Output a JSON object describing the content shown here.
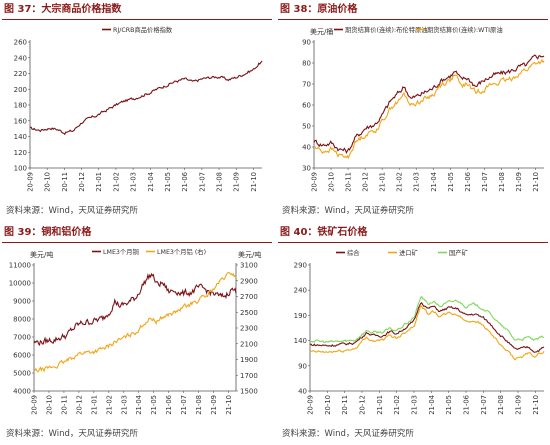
{
  "colors": {
    "title": "#8b1a1a",
    "darkred": "#7a1116",
    "orange": "#f2a516",
    "green": "#7ed957"
  },
  "panels": [
    {
      "title": "图 37：大宗商品价格指数",
      "source": "资料来源：Wind，天风证券研究所"
    },
    {
      "title": "图 38：原油价格",
      "source": "资料来源：Wind，天风证券研究所"
    },
    {
      "title": "图 39：铜和铝价格",
      "source": "资料来源：Wind，天风证券研究所"
    },
    {
      "title": "图 40：铁矿石价格",
      "source": "资料来源：Wind，天风证券研究所"
    }
  ],
  "chart_data": [
    {
      "type": "line",
      "x_ticks": [
        "20-09",
        "20-10",
        "20-11",
        "20-12",
        "21-01",
        "21-02",
        "21-03",
        "21-04",
        "21-05",
        "21-06",
        "21-07",
        "21-08",
        "21-09",
        "21-10"
      ],
      "ylim": [
        100,
        260
      ],
      "y_ticks": [
        100,
        120,
        140,
        160,
        180,
        200,
        220,
        240,
        260
      ],
      "ylabel": "",
      "series": [
        {
          "name": "RJ/CRB商品价格指数",
          "color": "#7a1116",
          "anchors": [
            [
              0,
              150
            ],
            [
              0.6,
              148
            ],
            [
              1.2,
              151
            ],
            [
              1.6,
              149
            ],
            [
              2.0,
              145
            ],
            [
              2.5,
              147
            ],
            [
              3.0,
              158
            ],
            [
              3.5,
              163
            ],
            [
              4.0,
              168
            ],
            [
              4.5,
              174
            ],
            [
              5.0,
              180
            ],
            [
              5.5,
              185
            ],
            [
              6.0,
              188
            ],
            [
              6.5,
              192
            ],
            [
              7.0,
              196
            ],
            [
              7.5,
              201
            ],
            [
              8.0,
              206
            ],
            [
              8.5,
              210
            ],
            [
              9.0,
              213
            ],
            [
              9.5,
              209
            ],
            [
              10.0,
              213
            ],
            [
              10.5,
              215
            ],
            [
              11.0,
              216
            ],
            [
              11.5,
              212
            ],
            [
              12.0,
              215
            ],
            [
              12.5,
              220
            ],
            [
              12.8,
              223
            ],
            [
              13.0,
              225
            ],
            [
              13.3,
              232
            ],
            [
              13.5,
              235
            ]
          ],
          "noise": 1.6
        }
      ]
    },
    {
      "type": "line",
      "x_ticks": [
        "20-09",
        "20-10",
        "20-11",
        "20-12",
        "21-01",
        "21-02",
        "21-03",
        "21-04",
        "21-05",
        "21-06",
        "21-07",
        "21-08",
        "21-09",
        "21-10"
      ],
      "ylim": [
        30,
        90
      ],
      "y_ticks": [
        30,
        40,
        50,
        60,
        70,
        80,
        90
      ],
      "ylabel": "美元/桶",
      "series": [
        {
          "name": "期货结算价(连续):布伦特原油",
          "color": "#7a1116",
          "anchors": [
            [
              0,
              43
            ],
            [
              0.5,
              41
            ],
            [
              1.0,
              42
            ],
            [
              1.5,
              39
            ],
            [
              2.0,
              38
            ],
            [
              2.4,
              44
            ],
            [
              3.0,
              49
            ],
            [
              3.6,
              51
            ],
            [
              4.0,
              55
            ],
            [
              4.5,
              62
            ],
            [
              5.0,
              66
            ],
            [
              5.3,
              69
            ],
            [
              5.7,
              63
            ],
            [
              6.0,
              64
            ],
            [
              6.5,
              66
            ],
            [
              7.0,
              68
            ],
            [
              7.5,
              72
            ],
            [
              8.0,
              74
            ],
            [
              8.3,
              76
            ],
            [
              8.6,
              72
            ],
            [
              9.0,
              73
            ],
            [
              9.5,
              69
            ],
            [
              10.0,
              72
            ],
            [
              10.5,
              74
            ],
            [
              11.0,
              75
            ],
            [
              11.5,
              76
            ],
            [
              12.0,
              78
            ],
            [
              12.5,
              79
            ],
            [
              13.0,
              83
            ],
            [
              13.5,
              84
            ]
          ],
          "noise": 1.1
        },
        {
          "name": "期货结算价(连续):WTI原油",
          "color": "#f2a516",
          "anchors": [
            [
              0,
              40
            ],
            [
              0.5,
              38
            ],
            [
              1.0,
              39
            ],
            [
              1.5,
              36
            ],
            [
              2.0,
              35
            ],
            [
              2.4,
              42
            ],
            [
              3.0,
              46
            ],
            [
              3.6,
              48
            ],
            [
              4.0,
              52
            ],
            [
              4.5,
              59
            ],
            [
              5.0,
              62
            ],
            [
              5.3,
              65
            ],
            [
              5.7,
              60
            ],
            [
              6.0,
              61
            ],
            [
              6.5,
              63
            ],
            [
              7.0,
              65
            ],
            [
              7.5,
              70
            ],
            [
              8.0,
              72
            ],
            [
              8.3,
              74
            ],
            [
              8.6,
              69
            ],
            [
              9.0,
              70
            ],
            [
              9.5,
              66
            ],
            [
              10.0,
              68
            ],
            [
              10.5,
              70
            ],
            [
              11.0,
              71
            ],
            [
              11.5,
              72
            ],
            [
              12.0,
              75
            ],
            [
              12.5,
              77
            ],
            [
              13.0,
              80
            ],
            [
              13.5,
              81
            ]
          ],
          "noise": 1.1
        }
      ]
    },
    {
      "type": "line",
      "x_ticks": [
        "20-09",
        "20-10",
        "20-11",
        "20-12",
        "21-01",
        "21-02",
        "21-03",
        "21-04",
        "21-05",
        "21-06",
        "21-07",
        "21-08",
        "21-09",
        "21-10"
      ],
      "ylim": [
        4000,
        11000
      ],
      "y_ticks": [
        4000,
        5000,
        6000,
        7000,
        8000,
        9000,
        10000,
        11000
      ],
      "ylabel": "美元/吨",
      "ylim_right": [
        1500,
        3100
      ],
      "y_ticks_right": [
        1500,
        1700,
        1900,
        2100,
        2300,
        2500,
        2700,
        2900,
        3100
      ],
      "ylabel_right": "美元/吨",
      "series": [
        {
          "name": "LME3个月铜",
          "color": "#7a1116",
          "axis": "left",
          "anchors": [
            [
              0,
              6700
            ],
            [
              0.8,
              6750
            ],
            [
              1.5,
              6900
            ],
            [
              2.2,
              7100
            ],
            [
              2.8,
              7600
            ],
            [
              3.3,
              7800
            ],
            [
              4.0,
              7900
            ],
            [
              4.6,
              8000
            ],
            [
              5.0,
              8400
            ],
            [
              5.4,
              9000
            ],
            [
              5.8,
              8700
            ],
            [
              6.3,
              8900
            ],
            [
              6.8,
              9200
            ],
            [
              7.2,
              9800
            ],
            [
              7.6,
              10300
            ],
            [
              7.9,
              10500
            ],
            [
              8.2,
              9900
            ],
            [
              8.6,
              10000
            ],
            [
              9.0,
              9500
            ],
            [
              9.5,
              9600
            ],
            [
              10.0,
              9400
            ],
            [
              10.5,
              9500
            ],
            [
              11.0,
              9700
            ],
            [
              11.5,
              9600
            ],
            [
              12.0,
              9400
            ],
            [
              12.5,
              9200
            ],
            [
              12.8,
              9300
            ],
            [
              13.2,
              9700
            ],
            [
              13.5,
              9500
            ]
          ],
          "noise": 160
        },
        {
          "name": "LME3个月铝 (右)",
          "color": "#f2a516",
          "axis": "right",
          "anchors": [
            [
              0,
              1750
            ],
            [
              0.8,
              1780
            ],
            [
              1.5,
              1820
            ],
            [
              2.2,
              1880
            ],
            [
              2.8,
              1960
            ],
            [
              3.3,
              1990
            ],
            [
              4.0,
              2000
            ],
            [
              4.6,
              2030
            ],
            [
              5.0,
              2070
            ],
            [
              5.4,
              2130
            ],
            [
              5.8,
              2150
            ],
            [
              6.3,
              2200
            ],
            [
              6.8,
              2250
            ],
            [
              7.2,
              2330
            ],
            [
              7.6,
              2400
            ],
            [
              7.9,
              2420
            ],
            [
              8.2,
              2380
            ],
            [
              8.6,
              2440
            ],
            [
              9.0,
              2470
            ],
            [
              9.5,
              2500
            ],
            [
              10.0,
              2560
            ],
            [
              10.5,
              2600
            ],
            [
              11.0,
              2660
            ],
            [
              11.5,
              2700
            ],
            [
              12.0,
              2800
            ],
            [
              12.5,
              2900
            ],
            [
              12.8,
              2950
            ],
            [
              13.2,
              3000
            ],
            [
              13.5,
              2950
            ]
          ],
          "noise": 25
        }
      ]
    },
    {
      "type": "line",
      "x_ticks": [
        "20-09",
        "20-10",
        "20-11",
        "20-12",
        "21-01",
        "21-02",
        "21-03",
        "21-04",
        "21-05",
        "21-06",
        "21-07",
        "21-08",
        "21-09",
        "21-10"
      ],
      "ylim": [
        40,
        290
      ],
      "y_ticks": [
        40,
        90,
        140,
        190,
        240,
        290
      ],
      "ylabel": "",
      "series": [
        {
          "name": "综合",
          "color": "#7a1116",
          "anchors": [
            [
              0,
              132
            ],
            [
              1.0,
              130
            ],
            [
              2.0,
              133
            ],
            [
              2.6,
              136
            ],
            [
              3.0,
              148
            ],
            [
              3.3,
              156
            ],
            [
              3.6,
              150
            ],
            [
              4.2,
              150
            ],
            [
              4.6,
              158
            ],
            [
              5.0,
              154
            ],
            [
              5.4,
              163
            ],
            [
              6.0,
              178
            ],
            [
              6.4,
              218
            ],
            [
              6.8,
              203
            ],
            [
              7.1,
              208
            ],
            [
              7.5,
              198
            ],
            [
              8.0,
              205
            ],
            [
              8.5,
              203
            ],
            [
              9.0,
              190
            ],
            [
              9.5,
              193
            ],
            [
              10.0,
              185
            ],
            [
              10.5,
              170
            ],
            [
              11.0,
              150
            ],
            [
              11.4,
              138
            ],
            [
              11.8,
              122
            ],
            [
              12.2,
              124
            ],
            [
              12.6,
              127
            ],
            [
              13.0,
              118
            ],
            [
              13.5,
              126
            ]
          ],
          "noise": 2.2
        },
        {
          "name": "进口矿",
          "color": "#f2a516",
          "anchors": [
            [
              0,
              118
            ],
            [
              1.0,
              117
            ],
            [
              2.0,
              120
            ],
            [
              2.6,
              124
            ],
            [
              3.0,
              138
            ],
            [
              3.3,
              146
            ],
            [
              3.6,
              140
            ],
            [
              4.2,
              141
            ],
            [
              4.6,
              150
            ],
            [
              5.0,
              145
            ],
            [
              5.4,
              155
            ],
            [
              6.0,
              170
            ],
            [
              6.4,
              210
            ],
            [
              6.8,
              194
            ],
            [
              7.1,
              198
            ],
            [
              7.5,
              188
            ],
            [
              8.0,
              194
            ],
            [
              8.5,
              192
            ],
            [
              9.0,
              178
            ],
            [
              9.5,
              180
            ],
            [
              10.0,
              170
            ],
            [
              10.5,
              152
            ],
            [
              11.0,
              130
            ],
            [
              11.4,
              118
            ],
            [
              11.8,
              103
            ],
            [
              12.2,
              108
            ],
            [
              12.6,
              114
            ],
            [
              13.0,
              110
            ],
            [
              13.5,
              118
            ]
          ],
          "noise": 2.2
        },
        {
          "name": "国产矿",
          "color": "#7ed957",
          "anchors": [
            [
              0,
              140
            ],
            [
              1.0,
              137
            ],
            [
              2.0,
              139
            ],
            [
              2.6,
              141
            ],
            [
              3.0,
              153
            ],
            [
              3.3,
              160
            ],
            [
              3.6,
              156
            ],
            [
              4.2,
              157
            ],
            [
              4.6,
              163
            ],
            [
              5.0,
              160
            ],
            [
              5.4,
              170
            ],
            [
              6.0,
              185
            ],
            [
              6.4,
              228
            ],
            [
              6.8,
              212
            ],
            [
              7.1,
              218
            ],
            [
              7.5,
              208
            ],
            [
              8.0,
              216
            ],
            [
              8.5,
              220
            ],
            [
              9.0,
              208
            ],
            [
              9.5,
              212
            ],
            [
              10.0,
              203
            ],
            [
              10.5,
              190
            ],
            [
              11.0,
              170
            ],
            [
              11.4,
              160
            ],
            [
              11.8,
              142
            ],
            [
              12.2,
              143
            ],
            [
              12.6,
              146
            ],
            [
              13.0,
              140
            ],
            [
              13.5,
              148
            ]
          ],
          "noise": 2.2
        }
      ]
    }
  ]
}
